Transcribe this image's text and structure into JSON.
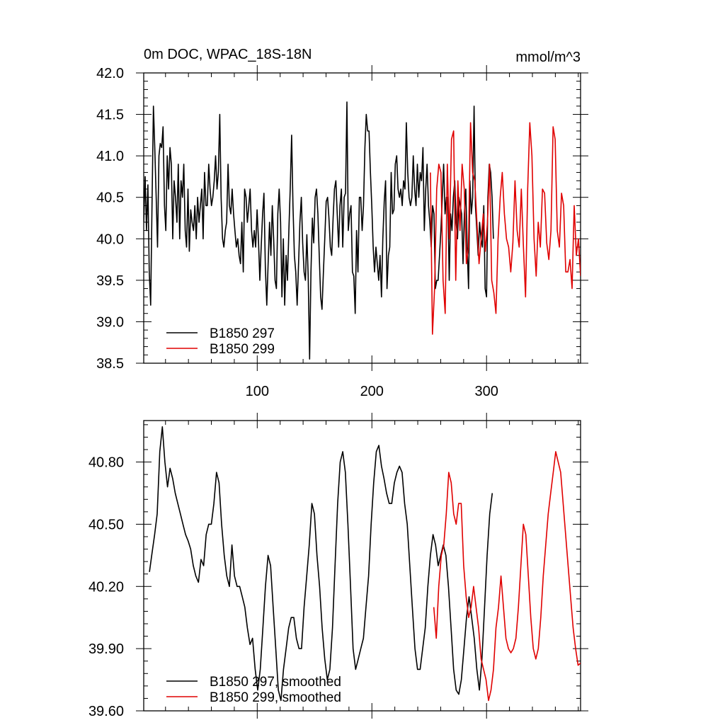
{
  "title_left": "0m DOC, WPAC_18S-18N",
  "title_right": "mmol/m^3",
  "colors": {
    "series_a": "#000000",
    "series_b": "#e00000"
  },
  "chart_data": [
    {
      "type": "line",
      "title": "0m DOC, WPAC_18S-18N",
      "units": "mmol/m^3",
      "xlim": [
        1,
        382
      ],
      "ylim": [
        38.5,
        42.0
      ],
      "x_ticks": [
        100,
        200,
        300
      ],
      "x_tick_labels": [
        "100",
        "200",
        "300"
      ],
      "y_ticks": [
        38.5,
        39.0,
        39.5,
        40.0,
        40.5,
        41.0,
        41.5,
        42.0
      ],
      "y_tick_labels": [
        "38.5",
        "39.0",
        "39.5",
        "40.0",
        "40.5",
        "41.0",
        "41.5",
        "42.0"
      ],
      "legend": "bottom-left",
      "series": [
        {
          "name": "B1850 297",
          "color": "#000000",
          "x_start": 1,
          "values": [
            40.2,
            40.75,
            40.1,
            40.65,
            39.6,
            39.2,
            40.4,
            41.6,
            41.1,
            40.5,
            39.9,
            41.0,
            41.15,
            41.1,
            41.35,
            40.4,
            40.1,
            41.0,
            40.6,
            41.1,
            40.9,
            40.0,
            40.7,
            40.5,
            40.2,
            40.9,
            40.0,
            40.7,
            40.5,
            40.9,
            40.1,
            39.9,
            40.6,
            39.85,
            40.35,
            40.2,
            40.1,
            40.4,
            40.0,
            40.5,
            40.2,
            40.4,
            40.6,
            40.0,
            40.8,
            40.4,
            40.4,
            40.9,
            40.6,
            40.4,
            40.5,
            40.7,
            41.0,
            40.6,
            40.8,
            41.5,
            40.5,
            40.0,
            39.9,
            40.1,
            40.2,
            40.9,
            40.4,
            40.3,
            40.6,
            40.3,
            40.1,
            39.9,
            40.0,
            39.8,
            39.7,
            40.2,
            39.6,
            40.6,
            40.5,
            40.2,
            40.4,
            40.6,
            40.1,
            39.9,
            40.1,
            39.9,
            40.35,
            40.0,
            39.5,
            39.9,
            40.3,
            40.55,
            39.65,
            39.2,
            39.7,
            40.2,
            39.8,
            40.4,
            40.0,
            39.5,
            39.4,
            40.3,
            40.6,
            40.2,
            39.3,
            40.0,
            39.2,
            39.8,
            39.5,
            40.1,
            40.6,
            41.25,
            40.4,
            39.8,
            39.6,
            39.2,
            39.7,
            40.2,
            40.5,
            39.95,
            39.6,
            39.5,
            40.05,
            39.55,
            38.55,
            39.6,
            40.25,
            39.95,
            40.5,
            40.6,
            40.3,
            39.8,
            39.3,
            39.15,
            39.6,
            40.0,
            40.45,
            40.5,
            40.25,
            39.9,
            39.8,
            40.25,
            40.6,
            40.7,
            40.3,
            39.9,
            40.4,
            40.6,
            39.9,
            40.5,
            40.55,
            41.65,
            40.1,
            40.3,
            40.4,
            39.6,
            39.55,
            39.1,
            40.1,
            39.6,
            40.5,
            40.5,
            40.1,
            40.4,
            41.1,
            41.5,
            41.3,
            41.3,
            40.8,
            40.4,
            39.9,
            39.6,
            39.9,
            39.7,
            39.5,
            39.8,
            39.3,
            40.0,
            40.45,
            40.7,
            39.4,
            39.8,
            39.9,
            40.8,
            40.3,
            40.35,
            40.9,
            41.0,
            40.6,
            40.5,
            40.6,
            40.4,
            40.7,
            40.6,
            41.4,
            40.8,
            40.5,
            40.4,
            40.5,
            41.0,
            40.6,
            40.4,
            40.9,
            40.5,
            40.8,
            40.7,
            41.1,
            40.1,
            40.6,
            40.9,
            40.4,
            40.2,
            39.9,
            40.4,
            40.3,
            39.4,
            39.5,
            39.5,
            39.8,
            40.1,
            40.5,
            40.9,
            40.3,
            40.5,
            40.5,
            39.5,
            40.3,
            40.1,
            40.5,
            40.7,
            40.2,
            40.0,
            40.5,
            40.4,
            40.3,
            39.7,
            40.3,
            40.6,
            39.9,
            39.4,
            40.7,
            40.3,
            40.5,
            41.6,
            40.4,
            40.1,
            39.8,
            40.2,
            40.0,
            39.9,
            40.4,
            39.4,
            39.3,
            40.5,
            40.9,
            40.8,
            40.5,
            40.0
          ],
          "values_note": "x spans 1..306 (values interpolated uniformly)",
          "x_end": 306
        },
        {
          "name": "B1850 299",
          "color": "#e00000",
          "x_start": 251,
          "x_end": 382,
          "values": [
            40.8,
            38.85,
            39.4,
            40.6,
            40.9,
            40.8,
            39.5,
            39.1,
            40.9,
            40.0,
            41.2,
            41.3,
            39.5,
            40.7,
            40.1,
            40.9,
            40.6,
            39.7,
            39.9,
            41.4,
            40.8,
            40.7,
            40.2,
            39.7,
            40.0,
            40.3,
            39.85,
            40.2,
            40.9,
            39.5,
            39.35,
            39.1,
            40.0,
            40.5,
            40.8,
            40.3,
            40.0,
            39.9,
            39.6,
            39.95,
            40.7,
            40.1,
            39.9,
            40.6,
            39.9,
            39.3,
            40.6,
            41.4,
            41.0,
            40.0,
            39.55,
            40.2,
            39.9,
            40.6,
            40.55,
            39.95,
            39.75,
            40.1,
            41.35,
            41.2,
            40.1,
            39.9,
            40.55,
            40.4,
            39.6,
            39.6,
            39.75,
            39.4,
            40.4,
            39.8,
            40.0,
            39.55
          ]
        }
      ]
    },
    {
      "type": "line",
      "xlim": [
        1,
        382
      ],
      "ylim": [
        39.6,
        41.0
      ],
      "y_ticks": [
        39.6,
        39.9,
        40.2,
        40.5,
        40.8
      ],
      "y_tick_labels": [
        "39.60",
        "39.90",
        "40.20",
        "40.50",
        "40.80"
      ],
      "legend": "bottom-left",
      "series": [
        {
          "name": "B1850 297, smoothed",
          "color": "#000000",
          "x_start": 6,
          "x_end": 305,
          "values": [
            40.27,
            40.36,
            40.45,
            40.55,
            40.85,
            40.97,
            40.8,
            40.68,
            40.77,
            40.72,
            40.65,
            40.6,
            40.55,
            40.5,
            40.45,
            40.42,
            40.38,
            40.3,
            40.25,
            40.22,
            40.33,
            40.3,
            40.45,
            40.5,
            40.5,
            40.6,
            40.75,
            40.7,
            40.5,
            40.35,
            40.25,
            40.2,
            40.4,
            40.25,
            40.2,
            40.2,
            40.15,
            40.1,
            40.0,
            39.92,
            39.95,
            39.8,
            39.7,
            39.8,
            40.0,
            40.2,
            40.35,
            40.3,
            40.1,
            39.9,
            39.7,
            39.65,
            39.8,
            39.9,
            40.0,
            40.05,
            40.05,
            39.95,
            39.9,
            39.9,
            40.1,
            40.25,
            40.4,
            40.6,
            40.55,
            40.35,
            40.2,
            40.0,
            39.85,
            39.75,
            39.8,
            40.0,
            40.3,
            40.6,
            40.8,
            40.85,
            40.75,
            40.5,
            40.2,
            39.9,
            39.8,
            39.85,
            39.9,
            39.95,
            40.1,
            40.25,
            40.5,
            40.7,
            40.85,
            40.88,
            40.78,
            40.72,
            40.65,
            40.6,
            40.6,
            40.7,
            40.75,
            40.78,
            40.75,
            40.6,
            40.5,
            40.3,
            40.1,
            39.9,
            39.8,
            39.8,
            39.9,
            40.0,
            40.2,
            40.35,
            40.45,
            40.4,
            40.3,
            40.35,
            40.4,
            40.35,
            40.2,
            40.0,
            39.8,
            39.7,
            39.68,
            39.75,
            39.9,
            40.05,
            40.15,
            40.05,
            39.95,
            39.8,
            39.7,
            39.85,
            40.1,
            40.35,
            40.55,
            40.65
          ]
        },
        {
          "name": "B1850 299, smoothed",
          "color": "#e00000",
          "x_start": 254,
          "x_end": 382,
          "values": [
            40.1,
            39.95,
            40.2,
            40.35,
            40.4,
            40.55,
            40.75,
            40.7,
            40.55,
            40.5,
            40.6,
            40.6,
            40.3,
            40.15,
            40.05,
            40.1,
            40.2,
            40.1,
            40.0,
            39.85,
            39.8,
            39.75,
            39.65,
            39.7,
            39.8,
            40.0,
            40.1,
            40.25,
            40.1,
            39.95,
            39.9,
            39.88,
            39.9,
            39.95,
            40.1,
            40.3,
            40.5,
            40.45,
            40.25,
            40.05,
            39.9,
            39.85,
            39.9,
            40.05,
            40.25,
            40.4,
            40.55,
            40.65,
            40.75,
            40.85,
            40.8,
            40.75,
            40.6,
            40.45,
            40.3,
            40.15,
            40.0,
            39.9,
            39.82,
            39.83
          ]
        }
      ]
    }
  ]
}
